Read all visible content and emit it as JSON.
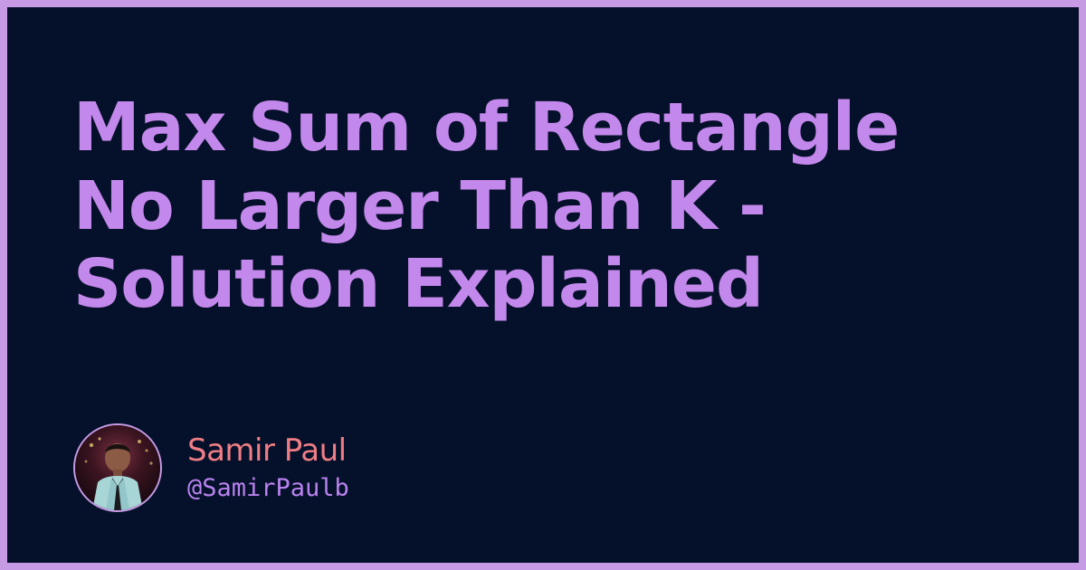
{
  "card": {
    "background_color": "#05112a",
    "border_color": "#c69ae5",
    "title_lines": [
      "Max Sum of Rectangle",
      "No Larger Than K -",
      "Solution Explained"
    ],
    "title_color": "#c388eb",
    "author": {
      "name": "Samir Paul",
      "handle": "@SamirPaulb",
      "name_color": "#ef7d85",
      "handle_color": "#b982ef",
      "avatar_icon": "avatar-photo"
    }
  }
}
